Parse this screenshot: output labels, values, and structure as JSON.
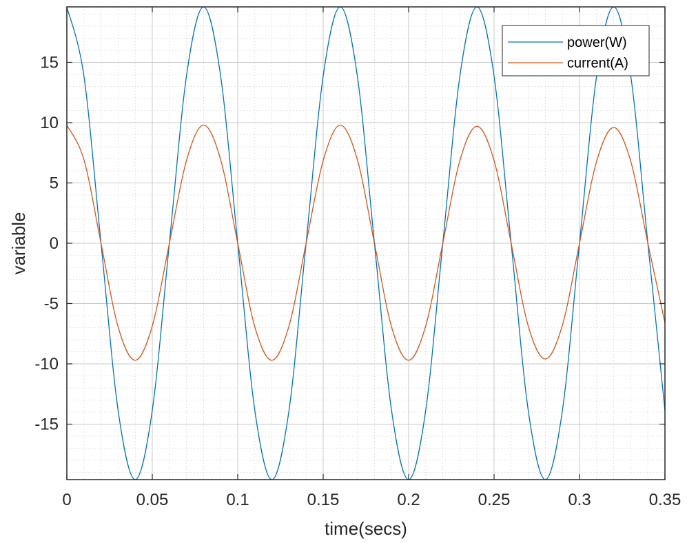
{
  "chart_data": {
    "type": "line",
    "title": "",
    "xlabel": "time(secs)",
    "ylabel": "variable",
    "xlim": [
      0,
      0.35
    ],
    "ylim": [
      -19.6,
      19.6
    ],
    "x_ticks": [
      0,
      0.05,
      0.1,
      0.15,
      0.2,
      0.25,
      0.3,
      0.35
    ],
    "x_tick_labels": [
      "0",
      "0.05",
      "0.1",
      "0.15",
      "0.2",
      "0.25",
      "0.3",
      "0.35"
    ],
    "y_ticks": [
      15,
      10,
      5,
      0,
      -5,
      -10,
      -15
    ],
    "y_tick_labels": [
      "15",
      "10",
      "5",
      "0",
      "-5",
      "-10",
      "-15"
    ],
    "grid": true,
    "minor_grid": true,
    "legend_position": "top-right",
    "x": [
      0,
      0.01,
      0.02,
      0.03,
      0.04,
      0.05,
      0.06,
      0.07,
      0.08,
      0.09,
      0.1,
      0.11,
      0.12,
      0.13,
      0.14,
      0.15,
      0.16,
      0.17,
      0.18,
      0.19,
      0.2,
      0.21,
      0.22,
      0.23,
      0.24,
      0.25,
      0.26,
      0.27,
      0.28,
      0.29,
      0.3,
      0.31,
      0.32,
      0.33,
      0.34,
      0.35
    ],
    "series": [
      {
        "name": "power(W)",
        "color": "#0072BD",
        "values": [
          19.6,
          13.86,
          0,
          -13.86,
          -19.6,
          -13.86,
          0,
          13.86,
          19.6,
          13.86,
          0,
          -13.86,
          -19.6,
          -13.86,
          0,
          13.86,
          19.6,
          13.86,
          0,
          -13.86,
          -19.6,
          -13.86,
          0,
          13.86,
          19.6,
          13.86,
          0,
          -13.86,
          -19.6,
          -13.86,
          0,
          13.86,
          19.6,
          13.86,
          0,
          -13.86
        ]
      },
      {
        "name": "current(A)",
        "color": "#D95319",
        "values": [
          9.8,
          6.93,
          0,
          -6.93,
          -9.7,
          -6.86,
          0,
          6.86,
          9.8,
          6.93,
          0,
          -6.93,
          -9.7,
          -6.86,
          0,
          6.86,
          9.8,
          6.93,
          0,
          -6.93,
          -9.7,
          -6.86,
          0,
          6.86,
          9.7,
          6.86,
          0,
          -6.86,
          -9.6,
          -6.79,
          0,
          6.79,
          9.6,
          6.79,
          0,
          -6.6
        ]
      }
    ]
  }
}
